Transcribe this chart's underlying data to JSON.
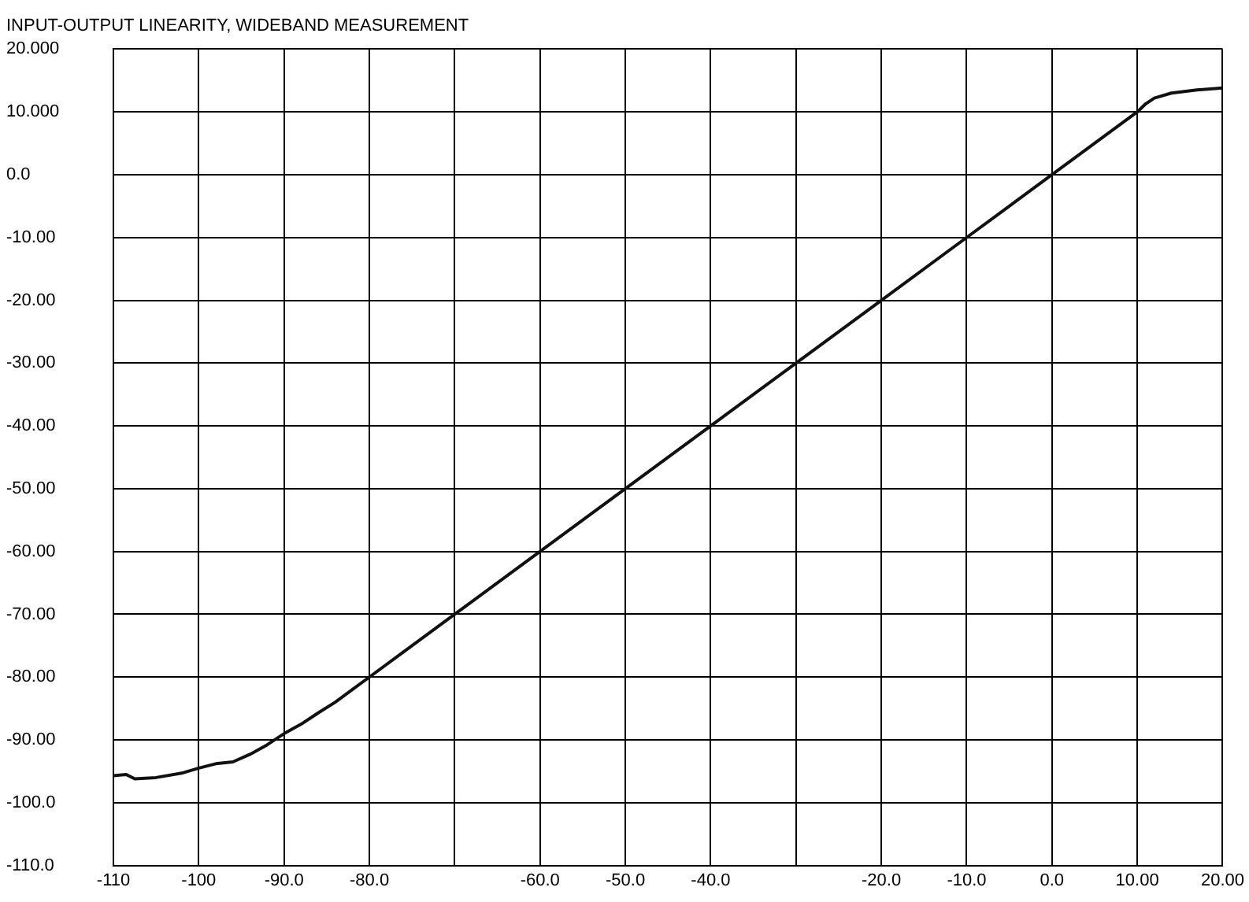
{
  "chart_data": {
    "type": "line",
    "title": "INPUT-OUTPUT LINEARITY, WIDEBAND MEASUREMENT",
    "x": [
      -110,
      -108.5,
      -107.5,
      -105,
      -102,
      -100,
      -98,
      -96,
      -94,
      -92,
      -90,
      -88,
      -86,
      -84,
      -82,
      -80,
      -70,
      -60,
      -50,
      -40,
      -30,
      -20,
      -10,
      0,
      10,
      11,
      12,
      14,
      17,
      20
    ],
    "series": [
      {
        "color": "#111111",
        "values": [
          -95.7,
          -95.5,
          -96.2,
          -96,
          -95.3,
          -94.5,
          -93.8,
          -93.5,
          -92.3,
          -90.8,
          -89,
          -87.5,
          -85.7,
          -84,
          -82,
          -80,
          -70,
          -60,
          -50,
          -40,
          -30,
          -20,
          -10,
          0,
          10,
          11.3,
          12.2,
          13,
          13.5,
          13.8
        ]
      }
    ],
    "xlim": [
      -110,
      20
    ],
    "xticks": [
      -110,
      -100,
      {
        "value": -90,
        "label": "-90.0"
      },
      {
        "value": -80,
        "label": "-80.0"
      },
      {
        "value": -70,
        "label": null
      },
      {
        "value": -60,
        "label": "-60.0"
      },
      {
        "value": -50,
        "label": "-50.0"
      },
      {
        "value": -40,
        "label": "-40.0"
      },
      {
        "value": -30,
        "label": null
      },
      {
        "value": -20,
        "label": "-20.0"
      },
      {
        "value": -10,
        "label": "-10.0"
      },
      {
        "value": 0,
        "label": "0.0"
      },
      {
        "value": 10,
        "label": "10.00"
      },
      {
        "value": 20,
        "label": "20.00"
      }
    ],
    "ylim": [
      -110,
      20
    ],
    "yticks": [
      {
        "value": -110,
        "label": "-110.0"
      },
      {
        "value": -100,
        "label": "-100.0"
      },
      {
        "value": -90,
        "label": "-90.00"
      },
      {
        "value": -80,
        "label": "-80.00"
      },
      {
        "value": -70,
        "label": "-70.00"
      },
      {
        "value": -60,
        "label": "-60.00"
      },
      {
        "value": -50,
        "label": "-50.00"
      },
      {
        "value": -40,
        "label": "-40.00"
      },
      {
        "value": -30,
        "label": "-30.00"
      },
      {
        "value": -20,
        "label": "-20.00"
      },
      {
        "value": -10,
        "label": "-10.00"
      },
      {
        "value": 0,
        "label": "0.0"
      },
      {
        "value": 10,
        "label": "10.000"
      },
      {
        "value": 20,
        "label": "20.000"
      }
    ],
    "grid": true,
    "legend": false,
    "marker": "none",
    "line_style": "solid"
  }
}
